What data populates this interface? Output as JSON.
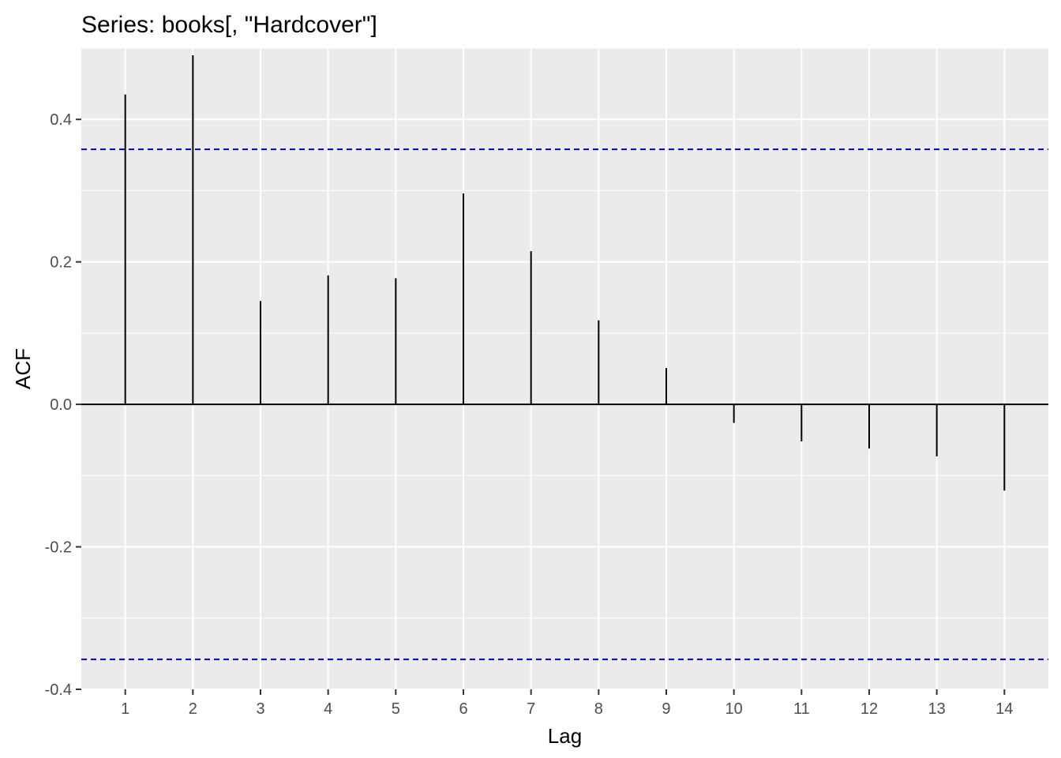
{
  "chart_data": {
    "type": "bar",
    "title": "Series: books[, \"Hardcover\"]",
    "xlabel": "Lag",
    "ylabel": "ACF",
    "x": [
      1,
      2,
      3,
      4,
      5,
      6,
      7,
      8,
      9,
      10,
      11,
      12,
      13,
      14
    ],
    "values": [
      0.435,
      0.49,
      0.145,
      0.181,
      0.177,
      0.296,
      0.215,
      0.118,
      0.051,
      -0.026,
      -0.052,
      -0.062,
      -0.073,
      -0.121
    ],
    "xlim": [
      0.35,
      14.65
    ],
    "ylim": [
      -0.4,
      0.5
    ],
    "x_ticks": [
      1,
      2,
      3,
      4,
      5,
      6,
      7,
      8,
      9,
      10,
      11,
      12,
      13,
      14
    ],
    "y_ticks": [
      -0.4,
      -0.2,
      0.0,
      0.2,
      0.4
    ],
    "y_tick_labels": [
      "-0.4",
      "-0.2",
      "0.0",
      "0.2",
      "0.4"
    ],
    "confidence_limits": [
      0.358,
      -0.358
    ],
    "grid": true,
    "colors": {
      "panel": "#ebebeb",
      "grid": "#ffffff",
      "bars": "#000000",
      "confidence": "#0000cc"
    }
  }
}
